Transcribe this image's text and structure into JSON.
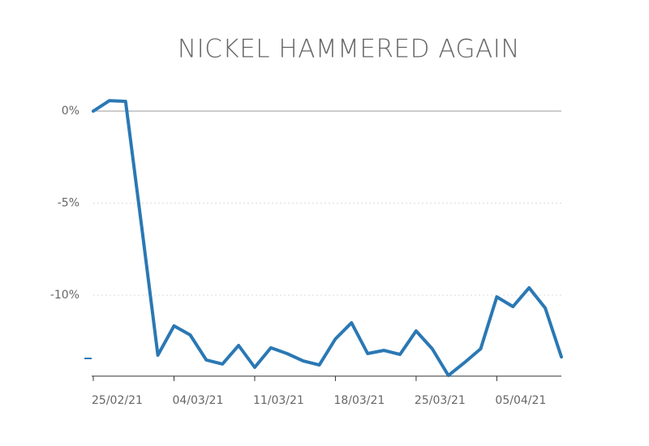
{
  "chart_data": {
    "type": "line",
    "title": "NICKEL HAMMERED AGAIN",
    "categories": [
      "25/02/21",
      null,
      null,
      null,
      null,
      "04/03/21",
      null,
      null,
      null,
      null,
      "11/03/21",
      null,
      null,
      null,
      null,
      "18/03/21",
      null,
      null,
      null,
      null,
      "25/03/21",
      null,
      null,
      null,
      null,
      "05/04/21",
      null,
      null,
      null,
      null
    ],
    "series": [
      {
        "name": "Nickel",
        "color": "#2a78b4",
        "values": [
          0,
          0.57,
          0.53,
          -6.3,
          -13.26,
          -11.67,
          -12.16,
          -13.52,
          -13.74,
          -12.73,
          -13.92,
          -12.86,
          -13.17,
          -13.57,
          -13.79,
          -12.38,
          -11.5,
          -13.17,
          -13.0,
          -13.22,
          -11.94,
          -12.91,
          -14.36,
          -13.66,
          -12.91,
          -10.09,
          -10.62,
          -9.6,
          -10.7,
          -13.35
        ]
      }
    ],
    "ylim": [
      -14.4,
      1
    ],
    "yticks": [
      {
        "value": 0,
        "label": "0%"
      },
      {
        "value": -5,
        "label": "-5%"
      },
      {
        "value": -10,
        "label": "-10%"
      }
    ],
    "grid": true
  }
}
